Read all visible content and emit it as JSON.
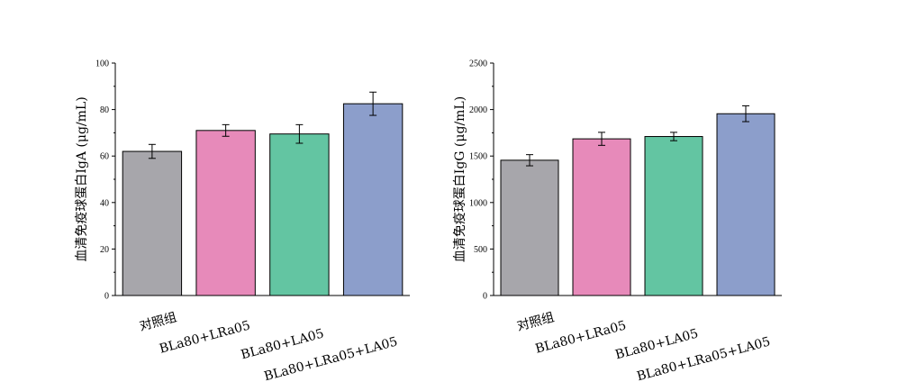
{
  "chart_data": [
    {
      "type": "bar",
      "title": "",
      "xlabel": "",
      "ylabel": "血清免疫球蛋白IgA (μg/mL)",
      "ylim": [
        0,
        100
      ],
      "yticks": [
        0,
        20,
        40,
        60,
        80,
        100
      ],
      "categories": [
        "对照组",
        "BLa80+LRa05",
        "BLa80+LA05",
        "BLa80+LRa05+LA05"
      ],
      "values": [
        62,
        71,
        69.5,
        82.5
      ],
      "errors": [
        3,
        2.5,
        4,
        5
      ],
      "colors": [
        "#a7a6ab",
        "#e78aba",
        "#63c5a2",
        "#8c9ecb"
      ],
      "grid": false,
      "legend": "none"
    },
    {
      "type": "bar",
      "title": "",
      "xlabel": "",
      "ylabel": "血清免疫球蛋白IgG (μg/mL)",
      "ylim": [
        0,
        2500
      ],
      "yticks": [
        0,
        500,
        1000,
        1500,
        2000,
        2500
      ],
      "categories": [
        "对照组",
        "BLa80+LRa05",
        "BLa80+LA05",
        "BLa80+LRa05+LA05"
      ],
      "values": [
        1455,
        1685,
        1710,
        1955
      ],
      "errors": [
        60,
        70,
        45,
        85
      ],
      "colors": [
        "#a7a6ab",
        "#e78aba",
        "#63c5a2",
        "#8c9ecb"
      ],
      "grid": false,
      "legend": "none"
    }
  ]
}
